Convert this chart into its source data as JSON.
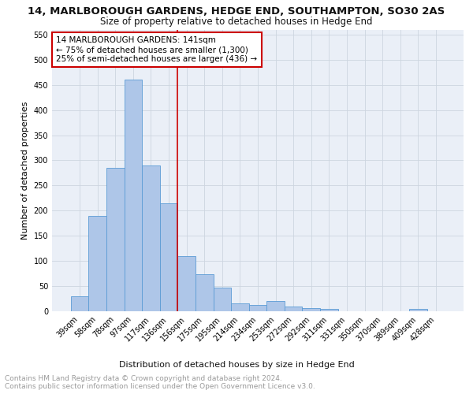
{
  "title": "14, MARLBOROUGH GARDENS, HEDGE END, SOUTHAMPTON, SO30 2AS",
  "subtitle": "Size of property relative to detached houses in Hedge End",
  "xlabel": "Distribution of detached houses by size in Hedge End",
  "ylabel": "Number of detached properties",
  "categories": [
    "39sqm",
    "58sqm",
    "78sqm",
    "97sqm",
    "117sqm",
    "136sqm",
    "156sqm",
    "175sqm",
    "195sqm",
    "214sqm",
    "234sqm",
    "253sqm",
    "272sqm",
    "292sqm",
    "311sqm",
    "331sqm",
    "350sqm",
    "370sqm",
    "389sqm",
    "409sqm",
    "428sqm"
  ],
  "values": [
    30,
    190,
    285,
    460,
    290,
    215,
    110,
    73,
    47,
    15,
    13,
    20,
    10,
    7,
    5,
    0,
    0,
    0,
    0,
    5,
    0
  ],
  "bar_color": "#aec6e8",
  "bar_edge_color": "#5b9bd5",
  "vline_x": 5.5,
  "vline_color": "#cc0000",
  "annotation_text": "14 MARLBOROUGH GARDENS: 141sqm\n← 75% of detached houses are smaller (1,300)\n25% of semi-detached houses are larger (436) →",
  "annotation_box_color": "#ffffff",
  "annotation_box_edge": "#cc0000",
  "ylim": [
    0,
    560
  ],
  "yticks": [
    0,
    50,
    100,
    150,
    200,
    250,
    300,
    350,
    400,
    450,
    500,
    550
  ],
  "footnote": "Contains HM Land Registry data © Crown copyright and database right 2024.\nContains public sector information licensed under the Open Government Licence v3.0.",
  "background_color": "#ffffff",
  "grid_color": "#cdd5e0",
  "title_fontsize": 9.5,
  "subtitle_fontsize": 8.5,
  "ylabel_fontsize": 8,
  "xlabel_fontsize": 8,
  "tick_fontsize": 7,
  "annotation_fontsize": 7.5,
  "footnote_fontsize": 6.5,
  "ax_bg_color": "#eaeff7"
}
